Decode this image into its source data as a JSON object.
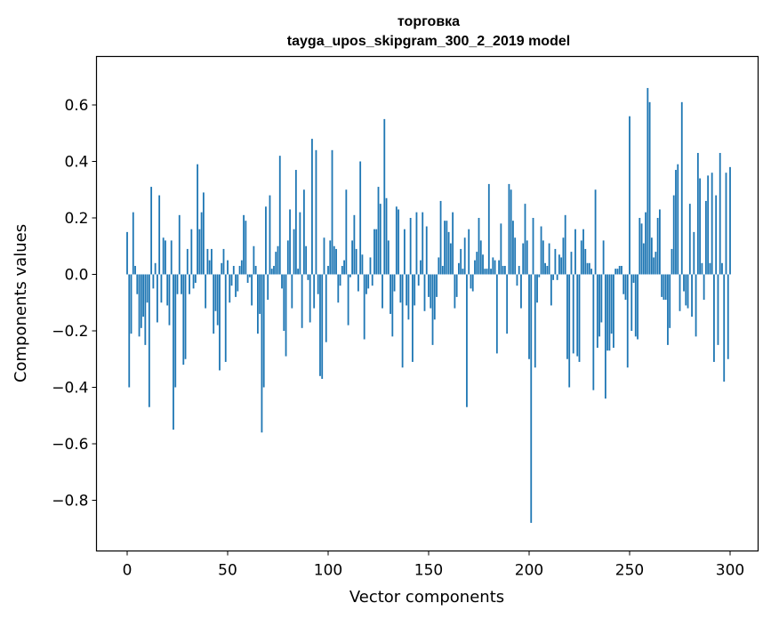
{
  "chart_data": {
    "type": "bar",
    "title": "торговка",
    "subtitle": "tayga_upos_skipgram_300_2_2019 model",
    "xlabel": "Vector components",
    "ylabel": "Components values",
    "xlim": [
      -10,
      309
    ],
    "ylim": [
      -0.98,
      0.77
    ],
    "xticks": [
      0,
      50,
      100,
      150,
      200,
      250,
      300
    ],
    "yticks": [
      0.6,
      0.4,
      0.2,
      0.0,
      -0.2,
      -0.4,
      -0.6,
      -0.8
    ],
    "ytick_labels": [
      "0.6",
      "0.4",
      "0.2",
      "0.0",
      "−0.2",
      "−0.4",
      "−0.6",
      "−0.8"
    ],
    "bar_color": "#1f77b4",
    "values": [
      0.15,
      -0.4,
      -0.21,
      0.22,
      0.03,
      -0.07,
      -0.22,
      -0.19,
      -0.15,
      -0.25,
      -0.1,
      -0.47,
      0.31,
      -0.05,
      0.04,
      -0.17,
      0.28,
      -0.1,
      0.13,
      0.12,
      -0.11,
      -0.18,
      0.12,
      -0.55,
      -0.4,
      -0.07,
      0.21,
      -0.07,
      -0.32,
      -0.3,
      0.09,
      -0.07,
      0.16,
      -0.05,
      -0.03,
      0.39,
      0.16,
      0.22,
      0.29,
      -0.12,
      0.09,
      0.05,
      0.09,
      -0.21,
      -0.13,
      -0.18,
      -0.34,
      0.04,
      0.09,
      -0.31,
      0.05,
      -0.1,
      -0.04,
      0.03,
      -0.08,
      -0.06,
      0.03,
      0.05,
      0.21,
      0.19,
      -0.03,
      -0.01,
      -0.11,
      0.1,
      0.03,
      -0.21,
      -0.14,
      -0.56,
      -0.4,
      0.24,
      -0.09,
      0.28,
      0.02,
      0.03,
      0.08,
      0.1,
      0.42,
      -0.05,
      -0.2,
      -0.29,
      0.12,
      0.23,
      -0.12,
      0.16,
      0.37,
      0.02,
      0.22,
      -0.19,
      0.3,
      0.1,
      -0.02,
      -0.17,
      0.48,
      -0.12,
      0.44,
      -0.07,
      -0.36,
      -0.37,
      0.13,
      -0.24,
      0.03,
      0.12,
      0.44,
      0.1,
      0.09,
      -0.1,
      -0.04,
      0.03,
      0.05,
      0.3,
      -0.18,
      -0.01,
      0.12,
      0.21,
      0.09,
      -0.06,
      0.4,
      0.07,
      -0.23,
      -0.07,
      -0.05,
      0.06,
      -0.04,
      0.16,
      0.16,
      0.31,
      0.25,
      -0.12,
      0.55,
      0.27,
      0.12,
      -0.14,
      -0.22,
      -0.06,
      0.24,
      0.23,
      -0.1,
      -0.33,
      0.16,
      -0.11,
      -0.16,
      0.2,
      -0.31,
      -0.11,
      0.22,
      -0.04,
      0.05,
      0.22,
      -0.13,
      0.17,
      -0.08,
      -0.12,
      -0.25,
      -0.16,
      -0.08,
      0.06,
      0.26,
      0.03,
      0.19,
      0.19,
      0.15,
      0.11,
      0.22,
      -0.12,
      -0.08,
      0.04,
      0.09,
      0.02,
      0.13,
      -0.47,
      0.16,
      -0.05,
      -0.06,
      0.05,
      0.08,
      0.2,
      0.12,
      0.07,
      0.02,
      0.02,
      0.32,
      0.02,
      0.06,
      0.05,
      -0.28,
      0.05,
      0.18,
      0.03,
      0.03,
      -0.21,
      0.32,
      0.3,
      0.19,
      0.13,
      -0.04,
      0.03,
      -0.12,
      0.11,
      0.25,
      0.12,
      -0.3,
      -0.88,
      0.2,
      -0.33,
      -0.1,
      -0.01,
      0.17,
      0.12,
      0.04,
      0.03,
      0.11,
      -0.11,
      -0.02,
      0.09,
      -0.02,
      0.07,
      0.06,
      0.13,
      0.21,
      -0.3,
      -0.4,
      0.08,
      -0.28,
      0.16,
      -0.29,
      -0.31,
      0.12,
      0.16,
      0.09,
      0.04,
      0.04,
      0.02,
      -0.41,
      0.3,
      -0.26,
      -0.22,
      -0.17,
      0.12,
      -0.44,
      -0.27,
      -0.27,
      -0.21,
      -0.26,
      0.02,
      0.02,
      0.03,
      0.03,
      -0.07,
      -0.09,
      -0.33,
      0.56,
      -0.2,
      -0.03,
      -0.22,
      -0.23,
      0.2,
      0.18,
      0.11,
      0.22,
      0.66,
      0.61,
      0.13,
      0.06,
      0.08,
      0.2,
      0.23,
      -0.08,
      -0.09,
      -0.09,
      -0.25,
      -0.19,
      0.09,
      0.28,
      0.37,
      0.39,
      -0.13,
      0.61,
      -0.06,
      -0.11,
      -0.12,
      0.25,
      -0.15,
      0.15,
      -0.22,
      0.43,
      0.34,
      0.04,
      -0.09,
      0.26,
      0.35,
      0.04,
      0.36,
      -0.31,
      0.28,
      -0.25,
      0.43,
      0.04,
      -0.38,
      0.36,
      -0.3,
      0.38
    ]
  }
}
